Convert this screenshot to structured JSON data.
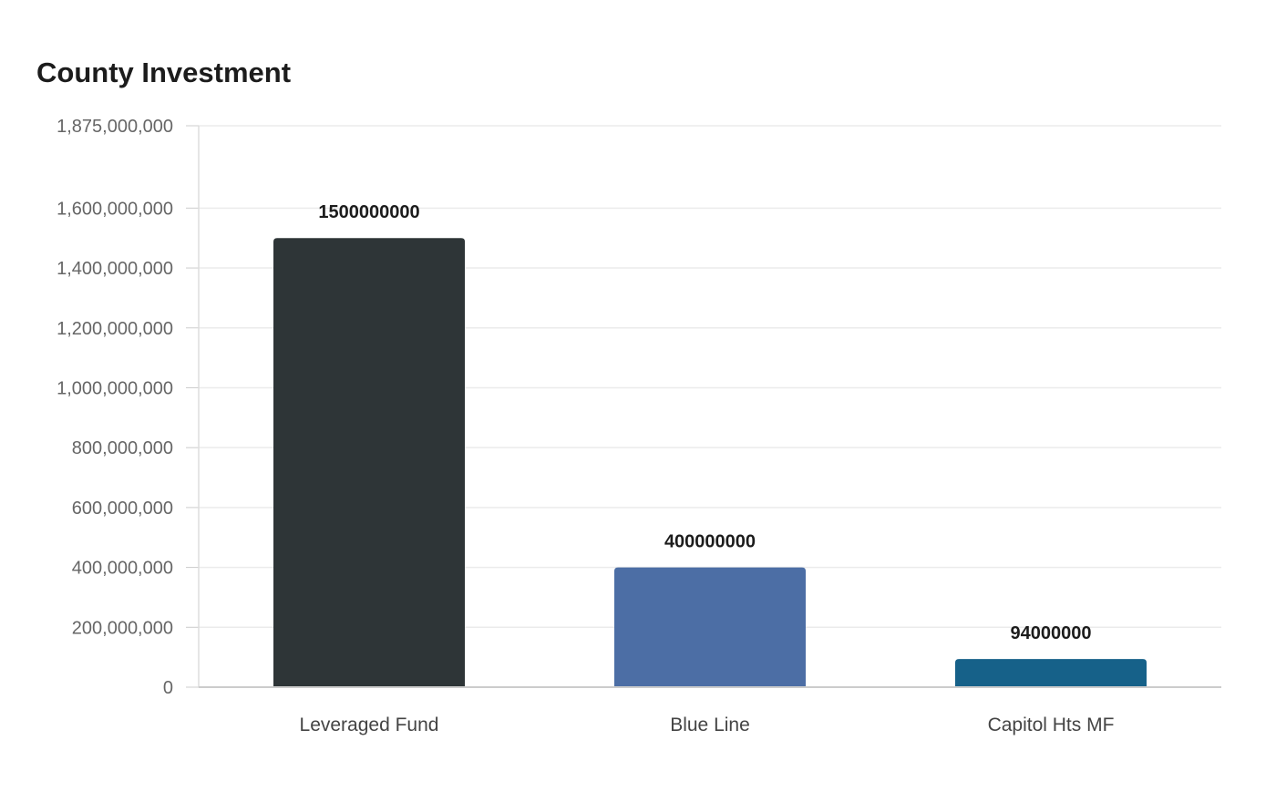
{
  "chart_data": {
    "type": "bar",
    "title": "County Investment",
    "xlabel": "",
    "ylabel": "",
    "categories": [
      "Leveraged Fund",
      "Blue Line",
      "Capitol Hts MF"
    ],
    "values": [
      1500000000,
      400000000,
      94000000
    ],
    "data_labels": [
      "1500000000",
      "400000000",
      "94000000"
    ],
    "bar_colors": [
      "#2e3537",
      "#4c6ea5",
      "#166189"
    ],
    "ylim": [
      0,
      1875000000
    ],
    "yticks": [
      0,
      200000000,
      400000000,
      600000000,
      800000000,
      1000000000,
      1200000000,
      1400000000,
      1600000000,
      1875000000
    ],
    "ytick_labels": [
      "0",
      "200,000,000",
      "400,000,000",
      "600,000,000",
      "800,000,000",
      "1,000,000,000",
      "1,200,000,000",
      "1,400,000,000",
      "1,600,000,000",
      "1,875,000,000"
    ],
    "grid": true,
    "legend": "none"
  }
}
